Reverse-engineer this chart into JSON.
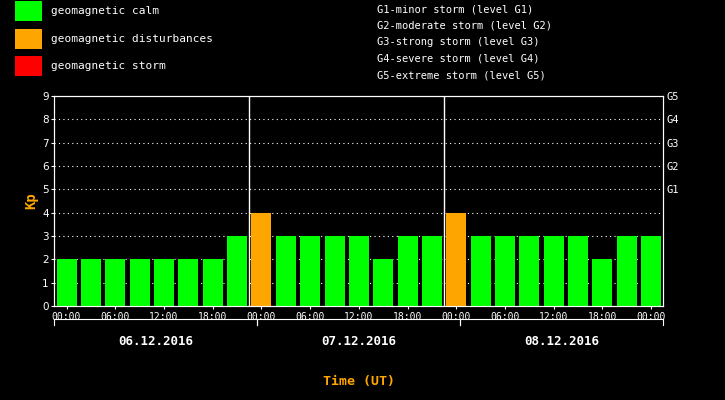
{
  "background_color": "#000000",
  "plot_bg_color": "#000000",
  "bar_values": [
    2,
    2,
    2,
    2,
    2,
    2,
    2,
    3,
    4,
    3,
    3,
    3,
    3,
    2,
    3,
    3,
    4,
    3,
    3,
    3,
    3,
    3,
    2,
    3,
    3
  ],
  "bar_colors": [
    "#00ff00",
    "#00ff00",
    "#00ff00",
    "#00ff00",
    "#00ff00",
    "#00ff00",
    "#00ff00",
    "#00ff00",
    "#ffa500",
    "#00ff00",
    "#00ff00",
    "#00ff00",
    "#00ff00",
    "#00ff00",
    "#00ff00",
    "#00ff00",
    "#ffa500",
    "#00ff00",
    "#00ff00",
    "#00ff00",
    "#00ff00",
    "#00ff00",
    "#00ff00",
    "#00ff00",
    "#00ff00"
  ],
  "ylim": [
    0,
    9
  ],
  "yticks": [
    0,
    1,
    2,
    3,
    4,
    5,
    6,
    7,
    8,
    9
  ],
  "ylabel": "Kp",
  "ylabel_color": "#ffa500",
  "xlabel": "Time (UT)",
  "xlabel_color": "#ffa500",
  "grid_color": "#ffffff",
  "tick_color": "#ffffff",
  "spine_color": "#ffffff",
  "text_color": "#ffffff",
  "legend_items": [
    {
      "label": "geomagnetic calm",
      "color": "#00ff00"
    },
    {
      "label": "geomagnetic disturbances",
      "color": "#ffa500"
    },
    {
      "label": "geomagnetic storm",
      "color": "#ff0000"
    }
  ],
  "right_legend": [
    "G1-minor storm (level G1)",
    "G2-moderate storm (level G2)",
    "G3-strong storm (level G3)",
    "G4-severe storm (level G4)",
    "G5-extreme storm (level G5)"
  ],
  "day_labels": [
    "06.12.2016",
    "07.12.2016",
    "08.12.2016"
  ],
  "right_axis_labels": [
    "G1",
    "G2",
    "G3",
    "G4",
    "G5"
  ],
  "right_axis_positions": [
    5,
    6,
    7,
    8,
    9
  ],
  "day_dividers_after": [
    7,
    15
  ],
  "xtick_positions": [
    0,
    2,
    4,
    6,
    8,
    10,
    12,
    14,
    16,
    18,
    20,
    22,
    24
  ],
  "xtick_labels": [
    "00:00",
    "06:00",
    "12:00",
    "18:00",
    "00:00",
    "06:00",
    "12:00",
    "18:00",
    "00:00",
    "06:00",
    "12:00",
    "18:00",
    "00:00"
  ],
  "n_bars": 25,
  "bar_width": 0.82,
  "figsize": [
    7.25,
    4.0
  ],
  "dpi": 100
}
